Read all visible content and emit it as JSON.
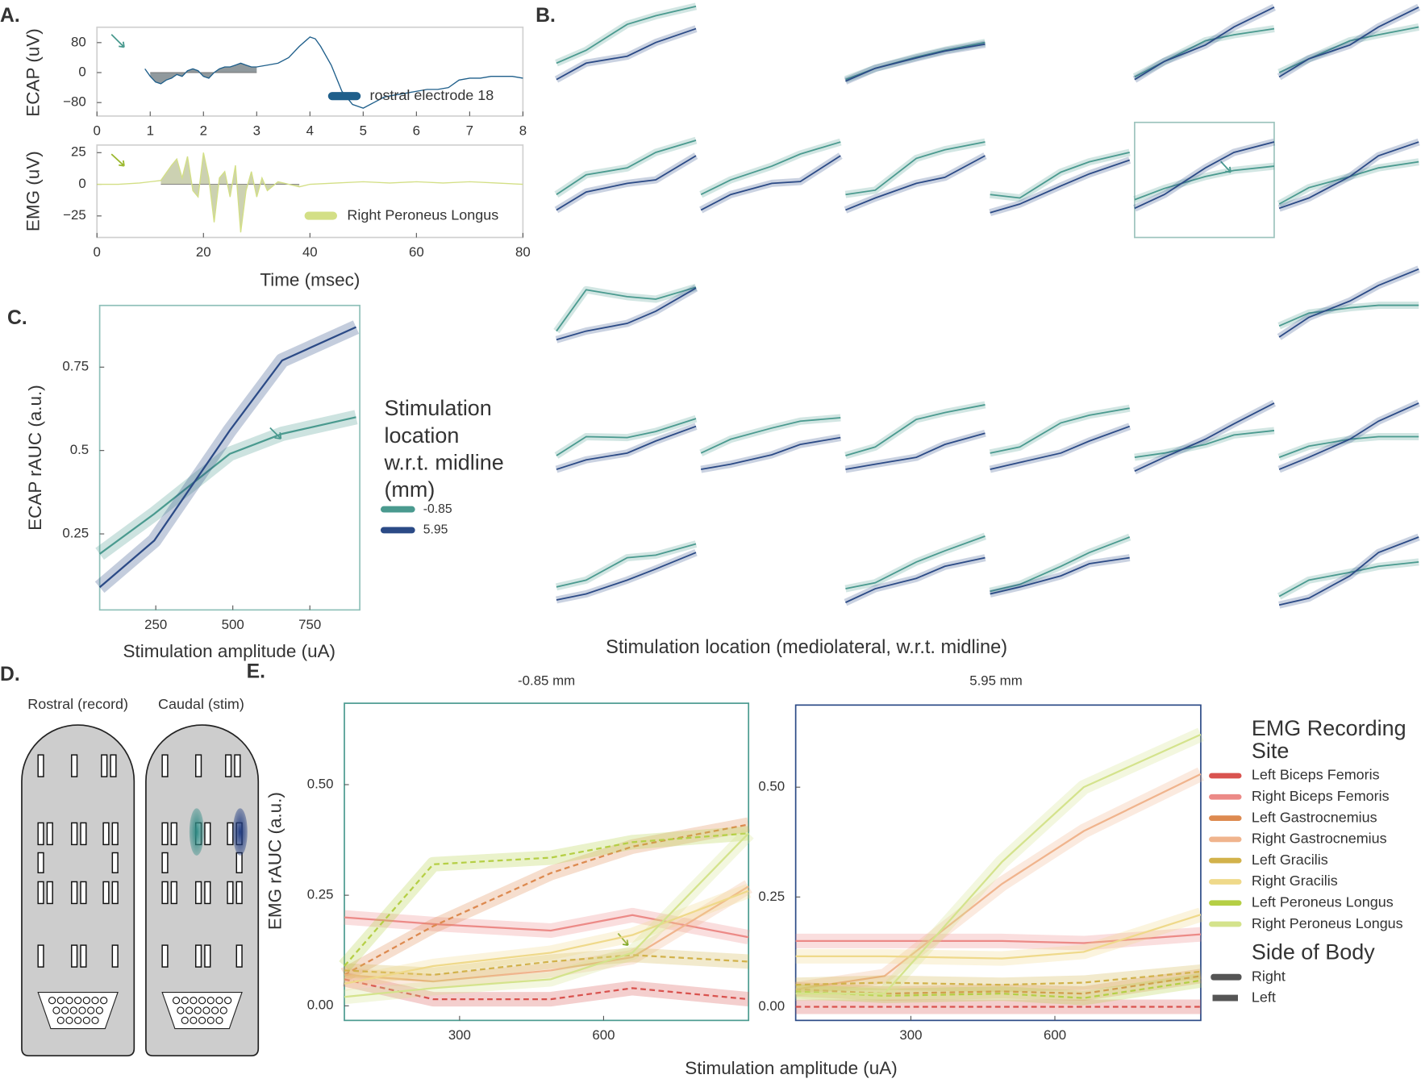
{
  "panel_labels": [
    "A.",
    "B.",
    "C.",
    "D.",
    "E."
  ],
  "diagram": {
    "labels": [
      "Rostral (record)",
      "Caudal (stim)"
    ]
  },
  "chart_data": [
    {
      "type": "line",
      "ylabel": "ECAP (uV)",
      "xlim": [
        0,
        8
      ],
      "ylim": [
        -116,
        121
      ],
      "xticks": [
        0,
        1,
        2,
        3,
        4,
        5,
        6,
        7,
        8
      ],
      "yticks": [
        {
          "value": -80,
          "label": "−80"
        },
        0,
        80
      ],
      "frame_color": "#d0d0d0",
      "shaded_xrange": [
        1,
        3
      ],
      "shade_color": "#7d878c",
      "x": [
        0.9,
        1.0,
        1.1,
        1.2,
        1.3,
        1.4,
        1.5,
        1.6,
        1.7,
        1.8,
        1.9,
        2.0,
        2.1,
        2.2,
        2.3,
        2.4,
        2.5,
        2.6,
        2.7,
        2.8,
        2.9,
        3.0,
        3.2,
        3.4,
        3.6,
        3.8,
        4.0,
        4.1,
        4.2,
        4.4,
        4.6,
        4.8,
        5.0,
        5.2,
        5.4,
        5.6,
        5.8,
        6.0,
        6.2,
        6.4,
        6.6,
        6.8,
        7.0,
        7.2,
        7.4,
        7.6,
        7.8,
        8.0
      ],
      "series": [
        {
          "name": "rostral electrode 18",
          "color": "#1f5f8b",
          "values": [
            10,
            -10,
            -25,
            -30,
            -20,
            -15,
            -5,
            -10,
            5,
            10,
            5,
            -10,
            -15,
            0,
            10,
            15,
            15,
            20,
            25,
            20,
            15,
            15,
            20,
            25,
            40,
            70,
            95,
            90,
            70,
            20,
            -50,
            -85,
            -95,
            -80,
            -65,
            -60,
            -55,
            -50,
            -45,
            -45,
            -40,
            -20,
            -15,
            -15,
            -10,
            -10,
            -10,
            -15
          ]
        }
      ]
    },
    {
      "type": "line",
      "ylabel": "EMG (uV)",
      "xlabel": "Time (msec)",
      "xlim": [
        0,
        80
      ],
      "ylim": [
        -42,
        31
      ],
      "xticks": [
        0,
        20,
        40,
        60,
        80
      ],
      "yticks": [
        {
          "value": -25,
          "label": "−25"
        },
        0,
        25
      ],
      "frame_color": "#d0d0d0",
      "shaded_xrange": [
        12,
        38
      ],
      "shade_color": "#c3c9a4",
      "x": [
        0,
        4,
        8,
        10,
        12,
        14,
        15,
        16,
        17,
        18,
        19,
        20,
        21,
        22,
        23,
        24,
        25,
        26,
        27,
        28,
        29,
        30,
        31,
        32,
        34,
        36,
        38,
        40,
        45,
        50,
        55,
        60,
        65,
        70,
        75,
        80
      ],
      "series": [
        {
          "name": "Right Peroneus Longus",
          "color": "#d3df86",
          "values": [
            0,
            0,
            1,
            2,
            3,
            15,
            20,
            5,
            22,
            -5,
            -10,
            25,
            5,
            -30,
            5,
            10,
            -10,
            15,
            -38,
            -5,
            10,
            -10,
            5,
            -5,
            2,
            0,
            -2,
            0,
            1,
            2,
            1,
            2,
            1,
            2,
            1,
            0
          ]
        }
      ]
    },
    {
      "type": "small_multiples",
      "xlabel": "Stimulation location (mediolateral, w.r.t. midline)",
      "x": [
        68,
        245,
        490,
        660,
        900
      ],
      "xlim": [
        68,
        900
      ],
      "ylim": [
        0,
        1
      ],
      "colors": [
        "#4a9a8f",
        "#2b4a86"
      ],
      "highlight_color": "#9cc3bd",
      "cells": [
        [
          {
            "values": [
              [
                0.32,
                0.47,
                0.77,
                0.87,
                0.98
              ],
              [
                0.13,
                0.32,
                0.4,
                0.56,
                0.72
              ]
            ]
          },
          null,
          {
            "values": [
              [
                0.13,
                0.26,
                0.39,
                0.47,
                0.56
              ],
              [
                0.11,
                0.26,
                0.38,
                0.46,
                0.54
              ]
            ]
          },
          null,
          {
            "values": [
              [
                0.16,
                0.34,
                0.58,
                0.65,
                0.72
              ],
              [
                0.13,
                0.34,
                0.53,
                0.74,
                0.97
              ]
            ]
          },
          {
            "values": [
              [
                0.21,
                0.37,
                0.58,
                0.65,
                0.74
              ],
              [
                0.16,
                0.37,
                0.53,
                0.74,
                0.97
              ]
            ]
          }
        ],
        [
          {
            "values": [
              [
                0.32,
                0.55,
                0.63,
                0.81,
                0.95
              ],
              [
                0.14,
                0.35,
                0.45,
                0.49,
                0.77
              ]
            ]
          },
          {
            "values": [
              [
                0.32,
                0.49,
                0.65,
                0.79,
                0.93
              ],
              [
                0.14,
                0.32,
                0.45,
                0.47,
                0.77
              ]
            ]
          },
          {
            "values": [
              [
                0.32,
                0.37,
                0.74,
                0.84,
                0.93
              ],
              [
                0.14,
                0.28,
                0.45,
                0.52,
                0.77
              ]
            ]
          },
          {
            "values": [
              [
                0.32,
                0.28,
                0.58,
                0.7,
                0.81
              ],
              [
                0.11,
                0.21,
                0.42,
                0.56,
                0.72
              ]
            ]
          },
          {
            "values": [
              [
                0.26,
                0.39,
                0.53,
                0.6,
                0.65
              ],
              [
                0.16,
                0.32,
                0.63,
                0.81,
                0.93
              ]
            ],
            "highlighted": true
          },
          {
            "values": [
              [
                0.21,
                0.4,
                0.53,
                0.63,
                0.7
              ],
              [
                0.16,
                0.28,
                0.53,
                0.77,
                0.93
              ]
            ]
          }
        ],
        [
          {
            "values": [
              [
                0.26,
                0.74,
                0.66,
                0.63,
                0.77
              ],
              [
                0.16,
                0.26,
                0.35,
                0.49,
                0.76
              ]
            ]
          },
          null,
          null,
          null,
          null,
          {
            "values": [
              [
                0.32,
                0.47,
                0.53,
                0.56,
                0.56
              ],
              [
                0.19,
                0.42,
                0.61,
                0.79,
                0.98
              ]
            ]
          }
        ],
        [
          {
            "values": [
              [
                0.34,
                0.56,
                0.55,
                0.62,
                0.77
              ],
              [
                0.18,
                0.29,
                0.37,
                0.51,
                0.68
              ]
            ]
          },
          {
            "values": [
              [
                0.37,
                0.53,
                0.66,
                0.74,
                0.78
              ],
              [
                0.18,
                0.24,
                0.35,
                0.47,
                0.55
              ]
            ]
          },
          {
            "values": [
              [
                0.34,
                0.44,
                0.76,
                0.84,
                0.93
              ],
              [
                0.18,
                0.24,
                0.32,
                0.47,
                0.6
              ]
            ]
          },
          {
            "values": [
              [
                0.37,
                0.44,
                0.72,
                0.81,
                0.89
              ],
              [
                0.18,
                0.26,
                0.37,
                0.51,
                0.68
              ]
            ]
          },
          {
            "values": [
              [
                0.32,
                0.37,
                0.47,
                0.58,
                0.63
              ],
              [
                0.16,
                0.32,
                0.53,
                0.71,
                0.95
              ]
            ]
          },
          {
            "values": [
              [
                0.32,
                0.45,
                0.53,
                0.56,
                0.56
              ],
              [
                0.18,
                0.32,
                0.53,
                0.74,
                0.95
              ]
            ]
          }
        ],
        [
          {
            "values": [
              [
                0.34,
                0.42,
                0.68,
                0.71,
                0.84
              ],
              [
                0.19,
                0.26,
                0.42,
                0.55,
                0.74
              ]
            ]
          },
          null,
          {
            "values": [
              [
                0.32,
                0.39,
                0.63,
                0.76,
                0.93
              ],
              [
                0.16,
                0.32,
                0.44,
                0.58,
                0.68
              ]
            ]
          },
          {
            "values": [
              [
                0.29,
                0.37,
                0.58,
                0.74,
                0.92
              ],
              [
                0.26,
                0.34,
                0.47,
                0.61,
                0.68
              ]
            ]
          },
          null,
          {
            "values": [
              [
                0.23,
                0.42,
                0.51,
                0.58,
                0.63
              ],
              [
                0.13,
                0.21,
                0.47,
                0.74,
                0.92
              ]
            ]
          }
        ]
      ]
    },
    {
      "type": "line",
      "ylabel": "ECAP rAUC (a.u.)",
      "xlabel": "Stimulation amplitude (uA)",
      "xlim": [
        68,
        912
      ],
      "ylim": [
        0.022,
        0.935
      ],
      "xticks": [
        250,
        500,
        750
      ],
      "yticks": [
        0.25,
        0.5,
        0.75
      ],
      "frame_color": "#8fc0b9",
      "band": true,
      "legend_title": [
        "Stimulation",
        "location",
        "w.r.t. midline",
        "(mm)"
      ],
      "x": [
        68,
        245,
        490,
        660,
        900
      ],
      "series": [
        {
          "name": "-0.85",
          "color": "#4a9a8f",
          "values": [
            0.19,
            0.31,
            0.49,
            0.55,
            0.6
          ]
        },
        {
          "name": "5.95",
          "color": "#2b4a86",
          "values": [
            0.09,
            0.23,
            0.56,
            0.77,
            0.87
          ]
        }
      ]
    },
    {
      "type": "line",
      "title": "-0.85 mm",
      "ylabel": "EMG rAUC (a.u.)",
      "xlabel": "Stimulation amplitude (uA)",
      "xlim": [
        60,
        902
      ],
      "ylim": [
        -0.033,
        0.684
      ],
      "xticks": [
        300,
        600
      ],
      "yticks": [
        {
          "value": 0,
          "label": "0.00"
        },
        0.25,
        {
          "value": 0.5,
          "label": "0.50"
        }
      ],
      "frame_color": "#4a9a8f",
      "band": true,
      "legend_title": [
        "EMG Recording",
        "Site"
      ],
      "side_legend": {
        "title": "Side of Body",
        "entries": [
          {
            "name": "Right",
            "dashed": false
          },
          {
            "name": "Left",
            "dashed": true
          }
        ]
      },
      "x": [
        60,
        245,
        490,
        660,
        902
      ],
      "series": [
        {
          "name": "Left Biceps Femoris",
          "color": "#d9534f",
          "dashed": true,
          "values": [
            0.06,
            0.015,
            0.015,
            0.04,
            0.015
          ]
        },
        {
          "name": "Right Biceps Femoris",
          "color": "#ec8a87",
          "dashed": false,
          "values": [
            0.2,
            0.185,
            0.17,
            0.205,
            0.155
          ]
        },
        {
          "name": "Left Gastrocnemius",
          "color": "#dd8a50",
          "dashed": true,
          "values": [
            0.07,
            0.18,
            0.3,
            0.36,
            0.41
          ]
        },
        {
          "name": "Right Gastrocnemius",
          "color": "#f0b48d",
          "dashed": false,
          "values": [
            0.07,
            0.055,
            0.08,
            0.11,
            0.27
          ]
        },
        {
          "name": "Left Gracilis",
          "color": "#d2b24b",
          "dashed": true,
          "values": [
            0.08,
            0.07,
            0.1,
            0.115,
            0.1
          ]
        },
        {
          "name": "Right Gracilis",
          "color": "#efd98a",
          "dashed": false,
          "values": [
            0.05,
            0.09,
            0.12,
            0.16,
            0.26
          ]
        },
        {
          "name": "Left Peroneus Longus",
          "color": "#b5cf45",
          "dashed": true,
          "values": [
            0.09,
            0.32,
            0.335,
            0.37,
            0.39
          ]
        },
        {
          "name": "Right Peroneus Longus",
          "color": "#d4e38c",
          "dashed": false,
          "values": [
            0.02,
            0.04,
            0.06,
            0.12,
            0.39
          ]
        }
      ]
    },
    {
      "type": "line",
      "title": "5.95 mm",
      "xlim": [
        60,
        904
      ],
      "ylim": [
        -0.031,
        0.687
      ],
      "xticks": [
        300,
        600
      ],
      "yticks": [
        {
          "value": 0,
          "label": "0.00"
        },
        0.25,
        {
          "value": 0.5,
          "label": "0.50"
        }
      ],
      "frame_color": "#2b4a86",
      "band": true,
      "x": [
        60,
        245,
        490,
        660,
        904
      ],
      "series": [
        {
          "values": [
            0,
            0,
            0,
            0,
            0
          ]
        },
        {
          "values": [
            0.15,
            0.15,
            0.15,
            0.145,
            0.165
          ]
        },
        {
          "values": [
            0.04,
            0.03,
            0.035,
            0.03,
            0.07
          ]
        },
        {
          "values": [
            0.04,
            0.07,
            0.28,
            0.4,
            0.53
          ]
        },
        {
          "values": [
            0.05,
            0.055,
            0.05,
            0.055,
            0.08
          ]
        },
        {
          "values": [
            0.115,
            0.115,
            0.11,
            0.125,
            0.21
          ]
        },
        {
          "values": [
            0.035,
            0.025,
            0.03,
            0.02,
            0.06
          ]
        },
        {
          "values": [
            0.03,
            0.03,
            0.33,
            0.5,
            0.62
          ]
        }
      ]
    }
  ]
}
